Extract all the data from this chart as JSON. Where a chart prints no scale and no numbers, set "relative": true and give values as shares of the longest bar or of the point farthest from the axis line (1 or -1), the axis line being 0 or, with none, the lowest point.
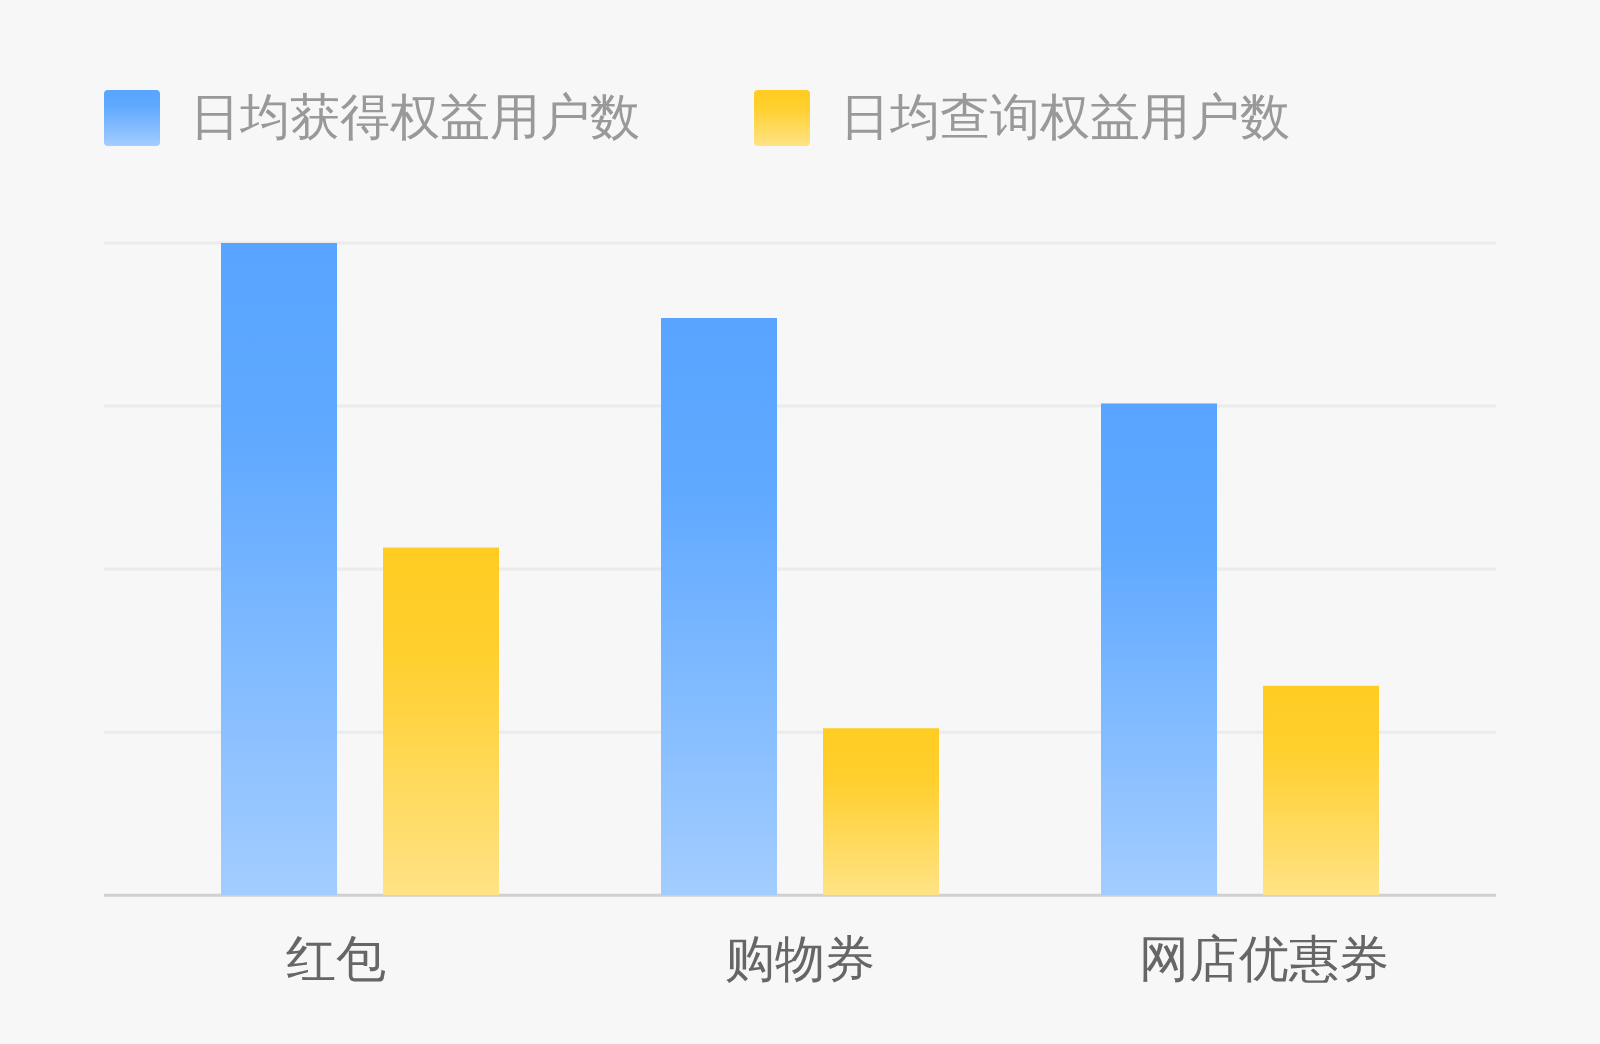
{
  "chart_data": {
    "type": "bar",
    "categories": [
      "红包",
      "购物券",
      "网店优惠券"
    ],
    "series": [
      {
        "name": "日均获得权益用户数",
        "color": "#58a4ff",
        "values": [
          1,
          0.885,
          0.754
        ]
      },
      {
        "name": "日均查询权益用户数",
        "color": "#ffcc22",
        "values": [
          0.533,
          0.256,
          0.321
        ]
      }
    ],
    "relative": true,
    "grid": "y",
    "legend": "top left"
  }
}
